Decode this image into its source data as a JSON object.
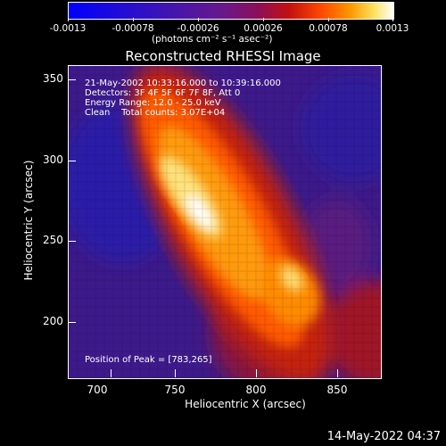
{
  "colorbar": {
    "ticks": [
      "-0.0013",
      "-0.00078",
      "-0.00026",
      "0.00026",
      "0.00078",
      "0.0013"
    ],
    "units": "(photons cm⁻² s⁻¹ asec⁻²)"
  },
  "title": "Reconstructed RHESSI Image",
  "annotations": {
    "line1": "21-May-2002 10:33:16.000 to 10:39:16.000",
    "line2": "Detectors: 3F 4F 5F 6F 7F 8F, Att 0",
    "line3": "Energy Range: 12.0 - 25.0 keV",
    "line4": "Clean    Total counts: 3.07E+04",
    "peak": "Position of Peak = [783,265]"
  },
  "axes": {
    "x_label": "Heliocentric X (arcsec)",
    "y_label": "Heliocentric Y (arcsec)",
    "x_ticks": [
      "700",
      "750",
      "800",
      "850"
    ],
    "y_ticks": [
      "350",
      "300",
      "250",
      "200"
    ]
  },
  "timestamp": "14-May-2022 04:37",
  "colors": {
    "background": "#000000",
    "low": "#3d1a8a",
    "high": "#ffffff"
  }
}
